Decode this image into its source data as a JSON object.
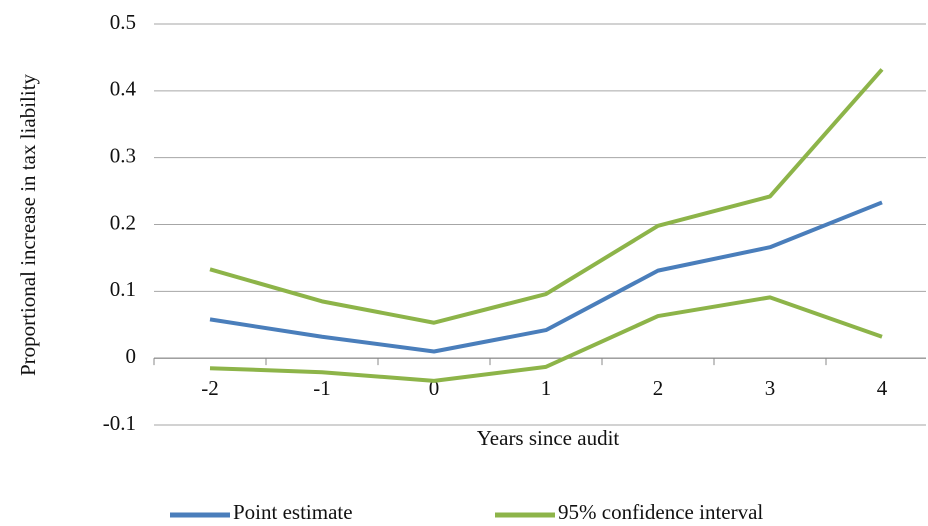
{
  "chart_data": {
    "type": "line",
    "x_label": "Years since audit",
    "y_label": "Proportional increase in tax liability",
    "categories": [
      "-2",
      "-1",
      "0",
      "1",
      "2",
      "3",
      "4"
    ],
    "series": [
      {
        "name": "Point estimate",
        "color": "#4a7ebb",
        "values": [
          0.058,
          0.032,
          0.01,
          0.042,
          0.131,
          0.166,
          0.233
        ]
      },
      {
        "name": "95% confidence interval",
        "color": "#8db449",
        "upper": [
          0.133,
          0.085,
          0.053,
          0.096,
          0.198,
          0.242,
          0.432
        ],
        "lower": [
          -0.015,
          -0.021,
          -0.034,
          -0.013,
          0.063,
          0.091,
          0.032
        ]
      }
    ],
    "ylim": [
      -0.1,
      0.5
    ],
    "yticks": [
      -0.1,
      0,
      0.1,
      0.2,
      0.3,
      0.4,
      0.5
    ],
    "grid": true
  }
}
